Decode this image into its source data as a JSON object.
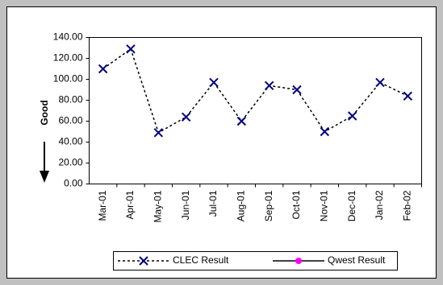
{
  "chart_data": {
    "type": "line",
    "y_label": "Good",
    "categories": [
      "Mar-01",
      "Apr-01",
      "May-01",
      "Jun-01",
      "Jul-01",
      "Aug-01",
      "Sep-01",
      "Oct-01",
      "Nov-01",
      "Dec-01",
      "Jan-02",
      "Feb-02"
    ],
    "series": [
      {
        "name": "CLEC Result",
        "color": "#000080",
        "values": [
          110,
          129,
          49,
          64,
          97,
          60,
          94,
          90,
          50,
          65,
          97,
          84
        ]
      },
      {
        "name": "Qwest Result",
        "color": "#ff00ff",
        "values": [
          null,
          null,
          null,
          null,
          null,
          null,
          null,
          null,
          null,
          null,
          null,
          null
        ]
      }
    ],
    "ylim": [
      0,
      140
    ],
    "yticks": [
      {
        "value": 0,
        "label": "0.00"
      },
      {
        "value": 20,
        "label": "20.00"
      },
      {
        "value": 40,
        "label": "40.00"
      },
      {
        "value": 60,
        "label": "60.00"
      },
      {
        "value": 80,
        "label": "80.00"
      },
      {
        "value": 100,
        "label": "100.00"
      },
      {
        "value": 120,
        "label": "120.00"
      },
      {
        "value": 140,
        "label": "140.00"
      }
    ],
    "grid": false
  }
}
